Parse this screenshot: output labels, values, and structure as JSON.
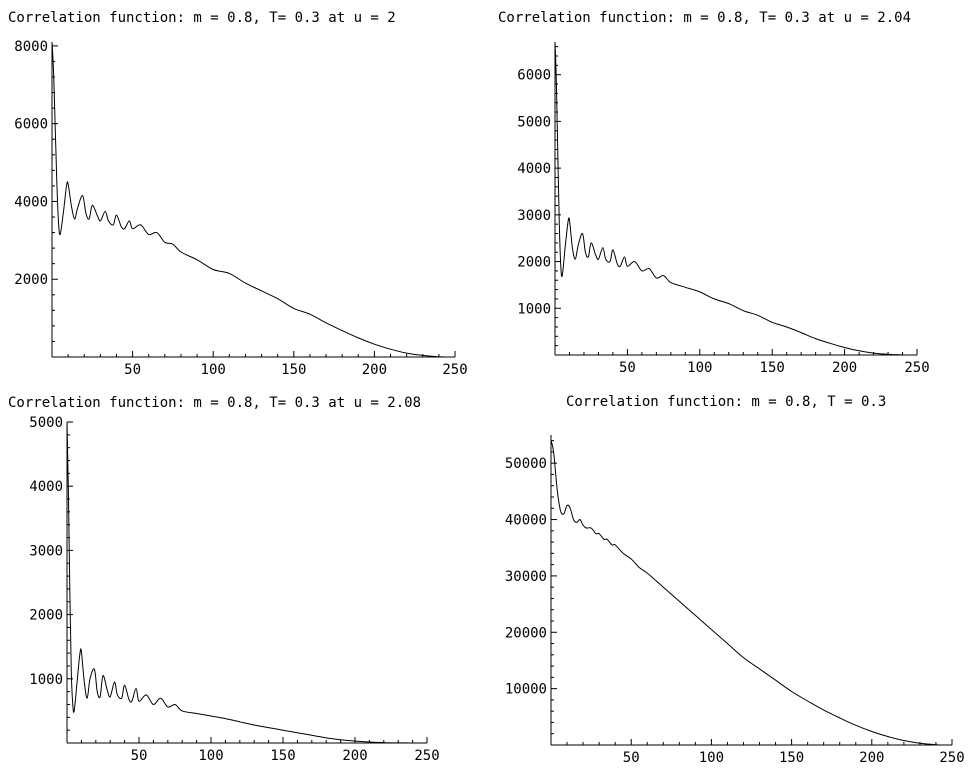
{
  "chart_data": [
    {
      "type": "line",
      "title": "Correlation function: m = 0.8, T= 0.3 at u = 2",
      "xlabel": "",
      "ylabel": "",
      "xlim": [
        0,
        250
      ],
      "ylim": [
        0,
        8100
      ],
      "xticks": [
        50,
        100,
        150,
        200,
        250
      ],
      "yticks": [
        2000,
        4000,
        6000,
        8000
      ],
      "grid": false,
      "legend": "none",
      "x": [
        0,
        1,
        2,
        3,
        4,
        5,
        7,
        9,
        10,
        12,
        14,
        16,
        19,
        21,
        23,
        25,
        28,
        30,
        33,
        35,
        38,
        40,
        43,
        45,
        48,
        50,
        55,
        60,
        65,
        70,
        75,
        80,
        90,
        100,
        110,
        120,
        130,
        140,
        150,
        160,
        170,
        180,
        190,
        200,
        210,
        220,
        230,
        240,
        245
      ],
      "y": [
        8100,
        7300,
        5900,
        4500,
        3500,
        3150,
        3700,
        4400,
        4450,
        3900,
        3550,
        3850,
        4150,
        3700,
        3550,
        3900,
        3650,
        3500,
        3750,
        3500,
        3400,
        3650,
        3350,
        3300,
        3500,
        3300,
        3400,
        3150,
        3200,
        2950,
        2900,
        2700,
        2500,
        2250,
        2150,
        1900,
        1700,
        1500,
        1250,
        1100,
        880,
        680,
        490,
        330,
        200,
        100,
        40,
        5,
        0
      ]
    },
    {
      "type": "line",
      "title": "Correlation function: m = 0.8, T= 0.3 at u = 2.04",
      "xlabel": "",
      "ylabel": "",
      "xlim": [
        0,
        250
      ],
      "ylim": [
        0,
        6700
      ],
      "xticks": [
        50,
        100,
        150,
        200,
        250
      ],
      "yticks": [
        1000,
        2000,
        3000,
        4000,
        5000,
        6000
      ],
      "grid": false,
      "legend": "none",
      "x": [
        0,
        1,
        2,
        3,
        4,
        5,
        7,
        9,
        10,
        12,
        14,
        16,
        19,
        21,
        23,
        25,
        28,
        30,
        33,
        35,
        38,
        40,
        43,
        45,
        48,
        50,
        55,
        60,
        65,
        70,
        75,
        80,
        90,
        100,
        110,
        120,
        130,
        140,
        150,
        160,
        170,
        180,
        190,
        200,
        210,
        220,
        230,
        240,
        245
      ],
      "y": [
        6700,
        5800,
        4200,
        2800,
        1900,
        1700,
        2300,
        2850,
        2880,
        2300,
        2050,
        2350,
        2600,
        2200,
        2100,
        2400,
        2150,
        2050,
        2300,
        2050,
        2000,
        2250,
        1950,
        1900,
        2100,
        1900,
        2000,
        1800,
        1850,
        1650,
        1700,
        1550,
        1450,
        1350,
        1200,
        1100,
        950,
        850,
        700,
        600,
        480,
        350,
        250,
        160,
        90,
        40,
        15,
        3,
        0
      ]
    },
    {
      "type": "line",
      "title": "Correlation function: m = 0.8, T= 0.3 at u = 2.08",
      "xlabel": "",
      "ylabel": "",
      "xlim": [
        0,
        250
      ],
      "ylim": [
        0,
        5000
      ],
      "xticks": [
        50,
        100,
        150,
        200,
        250
      ],
      "yticks": [
        1000,
        2000,
        3000,
        4000,
        5000
      ],
      "grid": false,
      "legend": "none",
      "x": [
        0,
        1,
        2,
        3,
        4,
        5,
        7,
        9,
        10,
        12,
        14,
        16,
        19,
        21,
        23,
        25,
        28,
        30,
        33,
        35,
        38,
        40,
        43,
        45,
        48,
        50,
        55,
        60,
        65,
        70,
        75,
        80,
        90,
        100,
        110,
        120,
        130,
        140,
        150,
        160,
        170,
        180,
        190,
        200,
        210,
        220,
        230,
        240,
        245
      ],
      "y": [
        5000,
        3900,
        2300,
        1100,
        600,
        500,
        950,
        1400,
        1420,
        950,
        700,
        1000,
        1150,
        800,
        720,
        1050,
        820,
        720,
        950,
        750,
        700,
        900,
        680,
        650,
        850,
        650,
        750,
        600,
        700,
        560,
        600,
        500,
        460,
        420,
        380,
        330,
        280,
        240,
        200,
        160,
        120,
        80,
        50,
        30,
        15,
        6,
        2,
        0,
        0
      ]
    },
    {
      "type": "line",
      "title": "Correlation function: m = 0.8, T = 0.3",
      "xlabel": "",
      "ylabel": "",
      "xlim": [
        0,
        250
      ],
      "ylim": [
        0,
        55000
      ],
      "xticks": [
        50,
        100,
        150,
        200,
        250
      ],
      "yticks": [
        10000,
        20000,
        30000,
        40000,
        50000
      ],
      "grid": false,
      "legend": "none",
      "x": [
        0,
        1,
        2,
        4,
        6,
        8,
        10,
        12,
        14,
        16,
        18,
        20,
        22,
        25,
        28,
        30,
        33,
        35,
        38,
        40,
        45,
        50,
        55,
        60,
        70,
        80,
        90,
        100,
        110,
        120,
        130,
        140,
        150,
        160,
        170,
        180,
        190,
        200,
        210,
        220,
        230,
        240,
        245
      ],
      "y": [
        54000,
        53000,
        51000,
        45000,
        41500,
        41000,
        42500,
        42000,
        40000,
        39500,
        40000,
        39000,
        38500,
        38500,
        37500,
        37500,
        36500,
        36500,
        35500,
        35500,
        34000,
        33000,
        31500,
        30500,
        28000,
        25500,
        23000,
        20500,
        18000,
        15500,
        13500,
        11500,
        9500,
        7800,
        6200,
        4800,
        3500,
        2400,
        1500,
        800,
        300,
        50,
        0
      ]
    }
  ]
}
